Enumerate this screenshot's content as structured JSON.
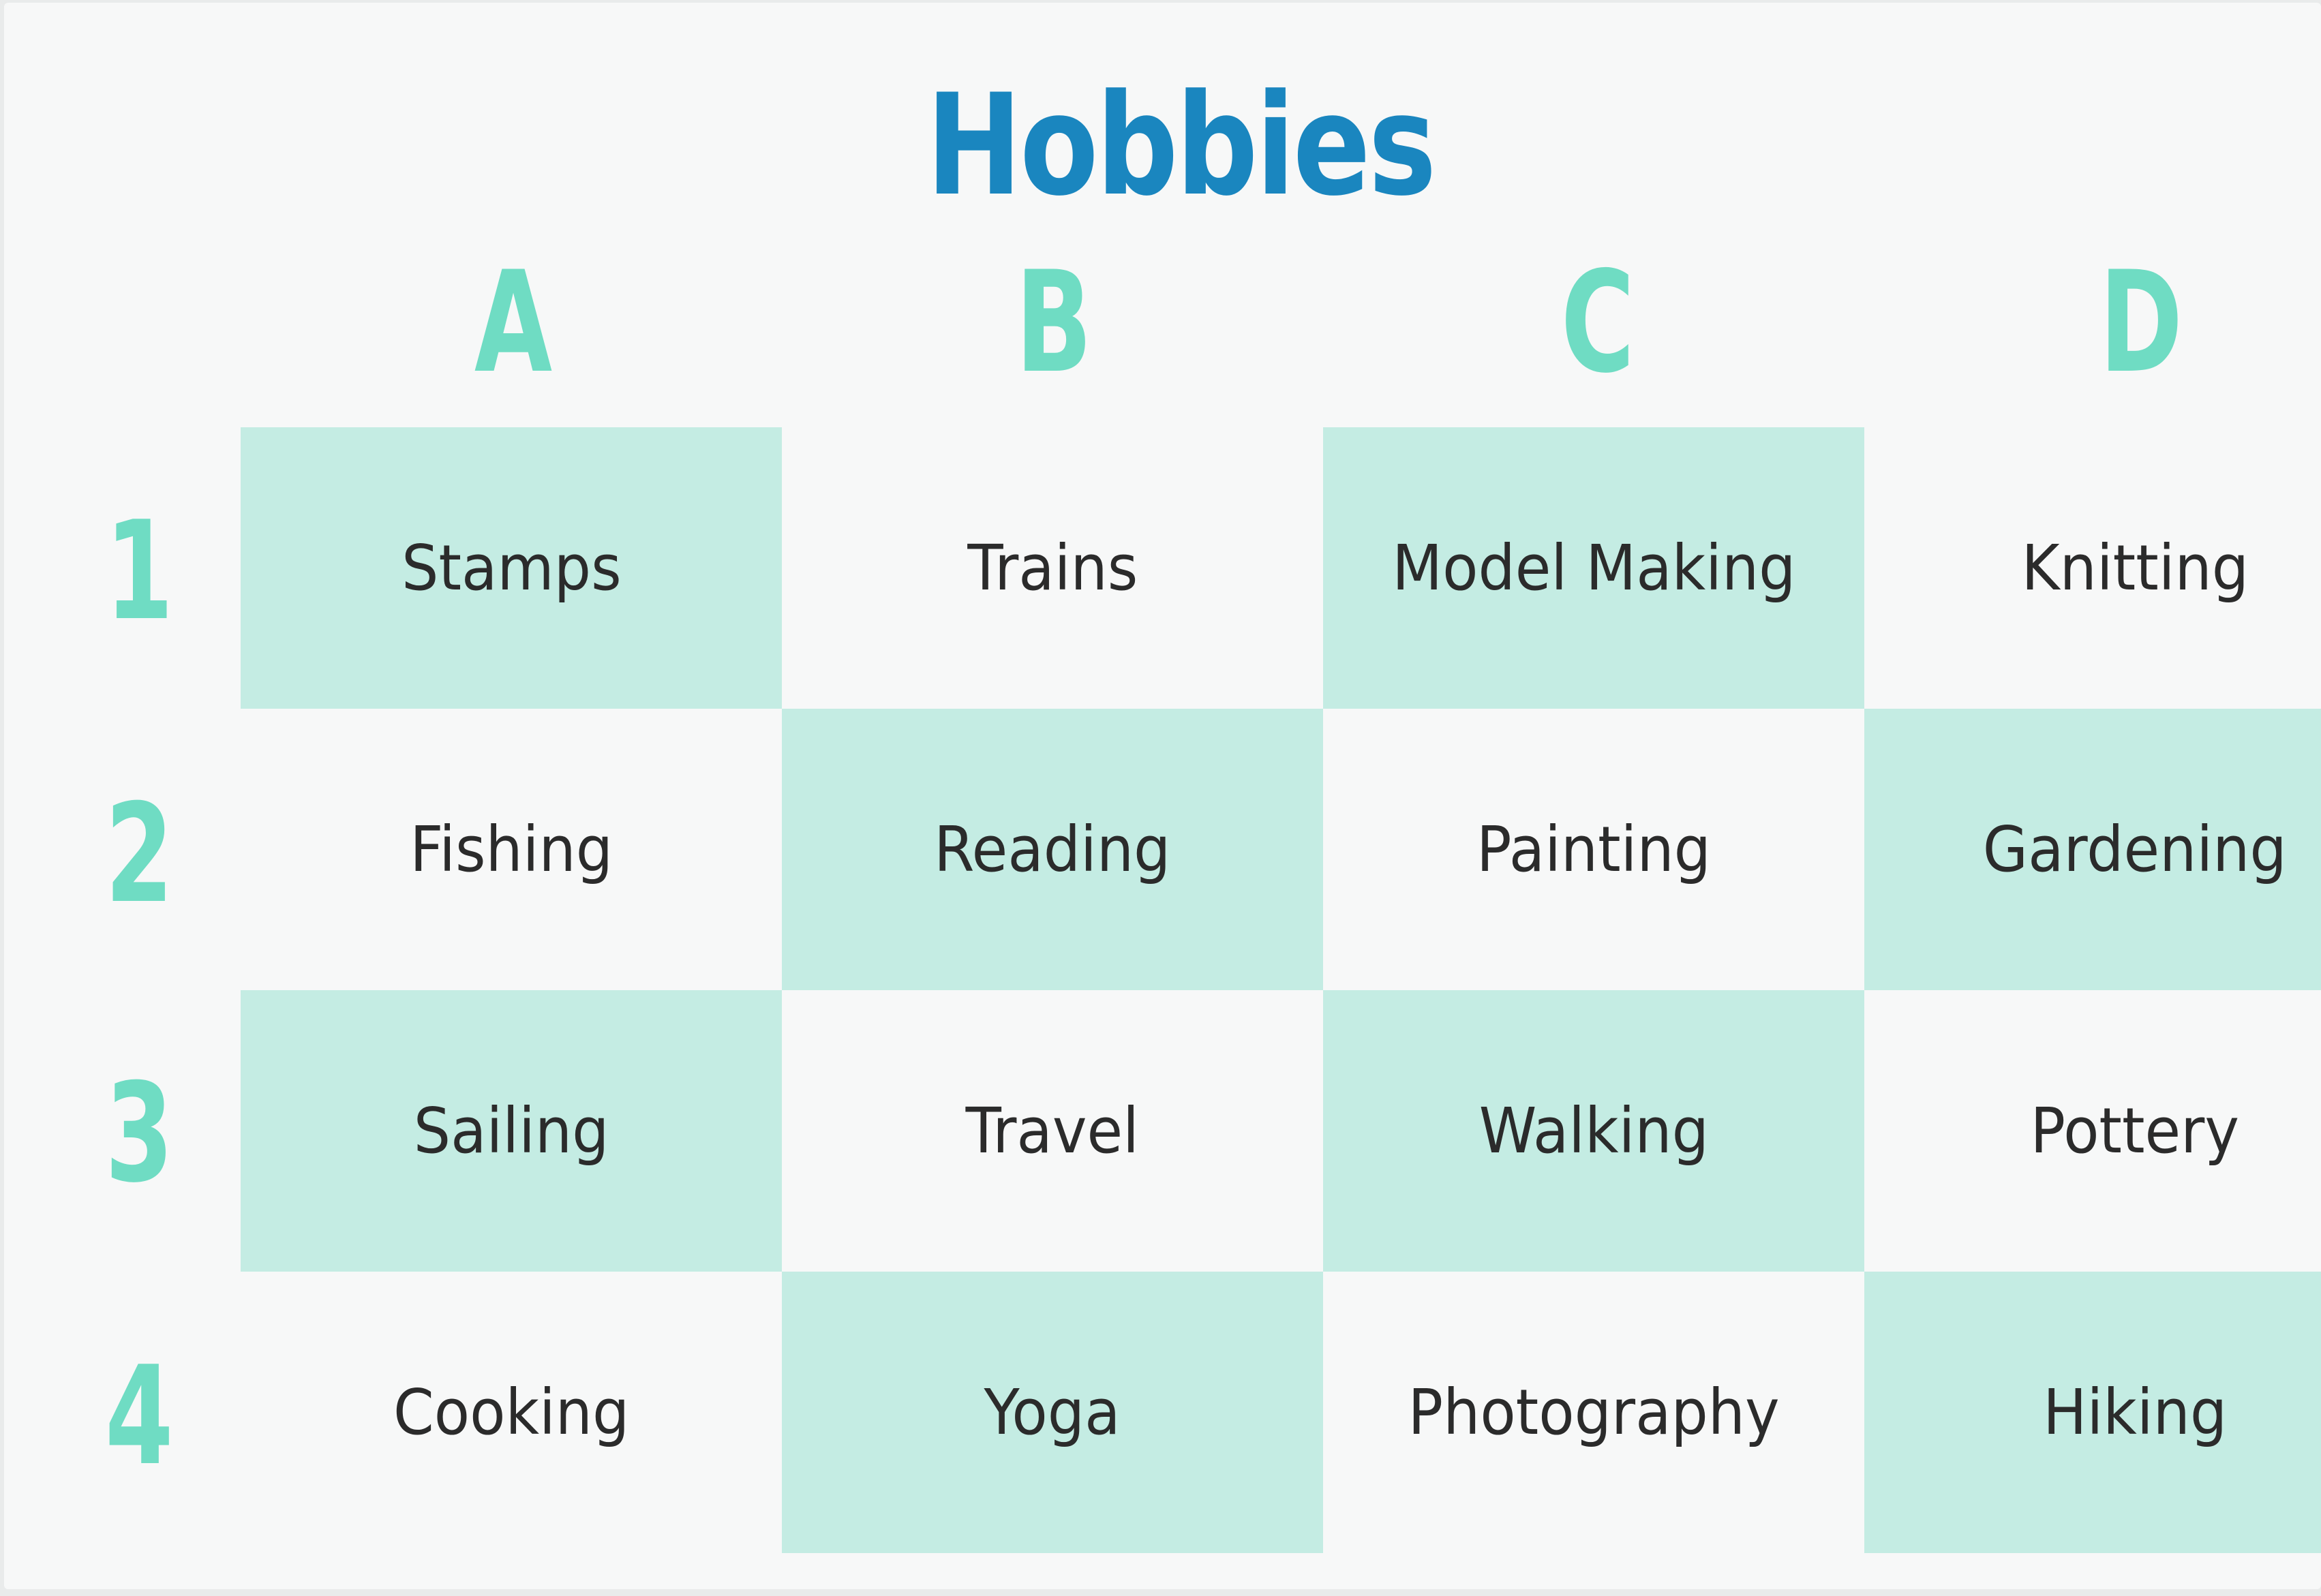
{
  "title": "Hobbies",
  "colors": {
    "title": "#1a86bf",
    "labels": "#6fdcc3",
    "shaded_cell": "#c4ece3",
    "text": "#2b2b2b"
  },
  "columns": [
    "A",
    "B",
    "C",
    "D"
  ],
  "rows": [
    "1",
    "2",
    "3",
    "4"
  ],
  "grid": [
    [
      {
        "text": "Stamps",
        "shaded": true
      },
      {
        "text": "Trains",
        "shaded": false
      },
      {
        "text": "Model Making",
        "shaded": true
      },
      {
        "text": "Knitting",
        "shaded": false
      }
    ],
    [
      {
        "text": "Fishing",
        "shaded": false
      },
      {
        "text": "Reading",
        "shaded": true
      },
      {
        "text": "Painting",
        "shaded": false
      },
      {
        "text": "Gardening",
        "shaded": true
      }
    ],
    [
      {
        "text": "Sailing",
        "shaded": true
      },
      {
        "text": "Travel",
        "shaded": false
      },
      {
        "text": "Walking",
        "shaded": true
      },
      {
        "text": "Pottery",
        "shaded": false
      }
    ],
    [
      {
        "text": "Cooking",
        "shaded": false
      },
      {
        "text": "Yoga",
        "shaded": true
      },
      {
        "text": "Photography",
        "shaded": false
      },
      {
        "text": "Hiking",
        "shaded": true
      }
    ]
  ]
}
